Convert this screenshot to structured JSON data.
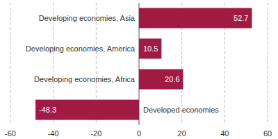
{
  "chart_data": {
    "type": "bar",
    "orientation": "horizontal",
    "categories": [
      "Developing economies, Asia",
      "Developing economies, America",
      "Developing economies, Africa",
      "Developed economies"
    ],
    "values": [
      52.7,
      10.5,
      20.6,
      -48.3
    ],
    "color": "#a01a44",
    "xlim": [
      -60,
      60
    ],
    "xticks": [
      -60,
      -40,
      -20,
      0,
      20,
      40,
      60
    ],
    "grid": true,
    "data_labels": true
  }
}
